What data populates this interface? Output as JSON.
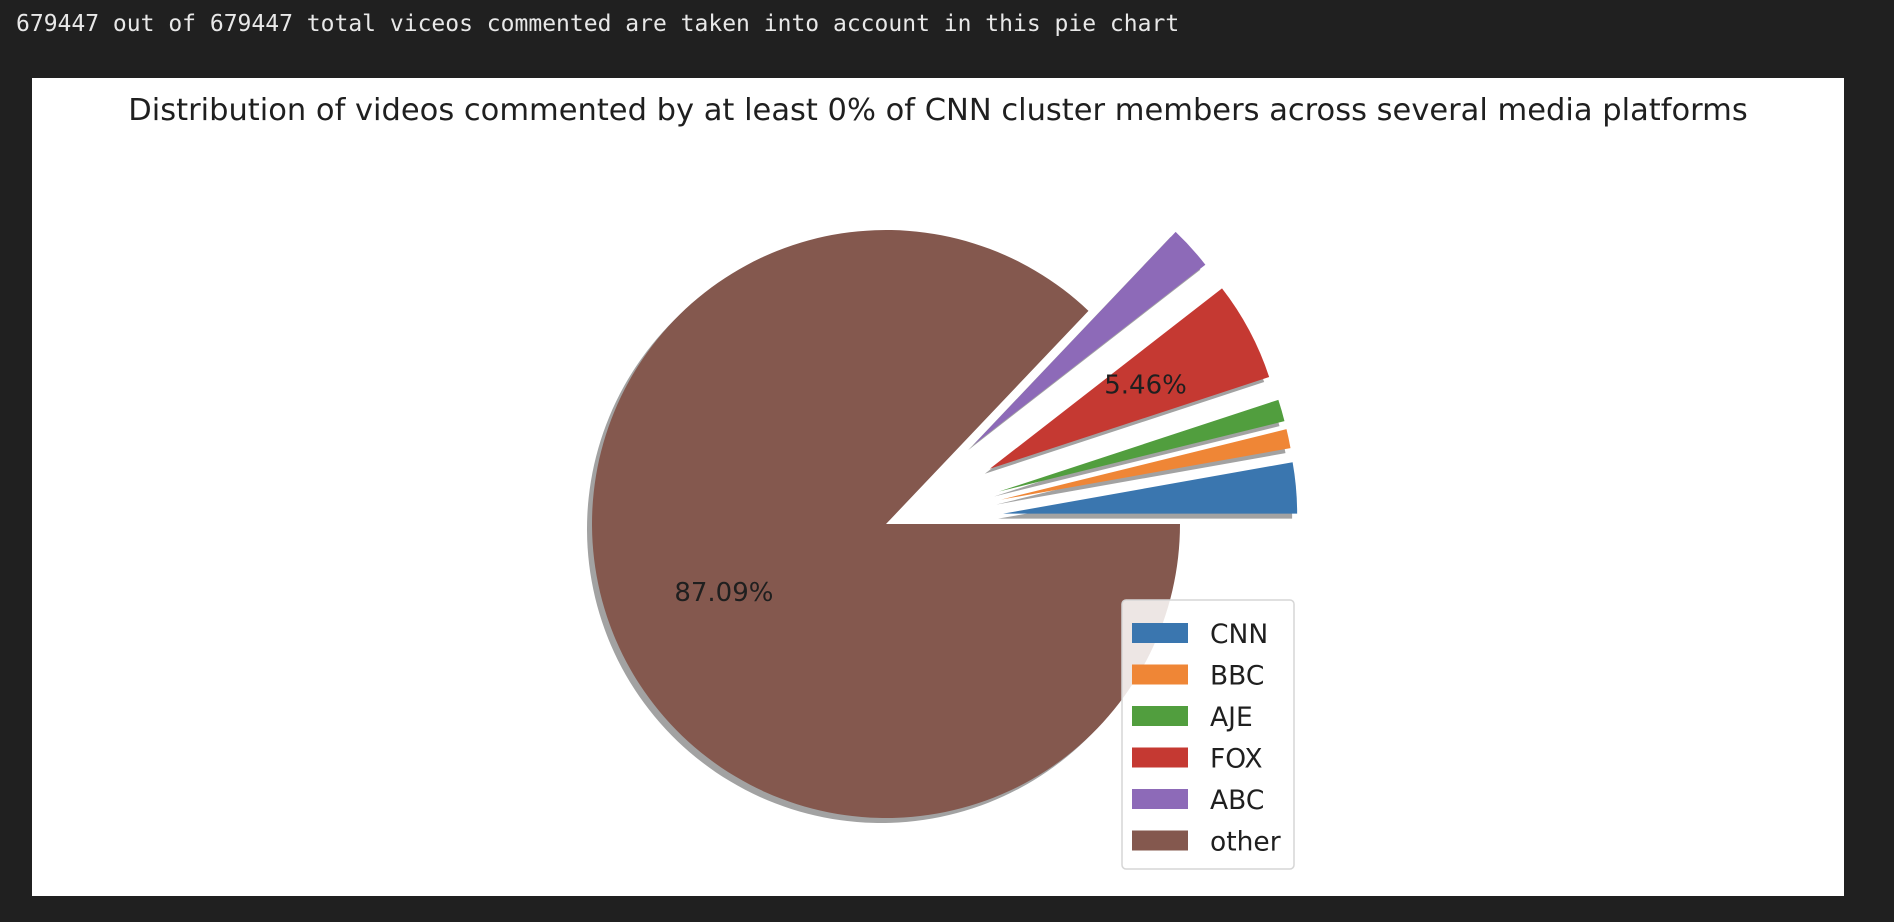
{
  "output": {
    "summary_text": "679447 out of 679447 total viceos commented are taken into account in this pie chart"
  },
  "chart_data": {
    "type": "pie",
    "title": "Distribution of videos commented by at least 0% of CNN cluster members across several media platforms",
    "labels": [
      "CNN",
      "BBC",
      "AJE",
      "FOX",
      "ABC",
      "other"
    ],
    "values": [
      2.8,
      1.05,
      1.2,
      5.46,
      2.4,
      87.09
    ],
    "displayed_percentages": [
      "",
      "",
      "",
      "5.46%",
      "",
      "87.09%"
    ],
    "colors": [
      "#3a76af",
      "#ef8636",
      "#519e3e",
      "#c53932",
      "#8d6ab8",
      "#84584e"
    ],
    "explode": [
      true,
      true,
      true,
      true,
      true,
      false
    ],
    "start_angle_deg": 0,
    "counterclockwise": true,
    "shadow": true,
    "legend": {
      "entries": [
        "CNN",
        "BBC",
        "AJE",
        "FOX",
        "ABC",
        "other"
      ],
      "location": "lower-right"
    }
  }
}
